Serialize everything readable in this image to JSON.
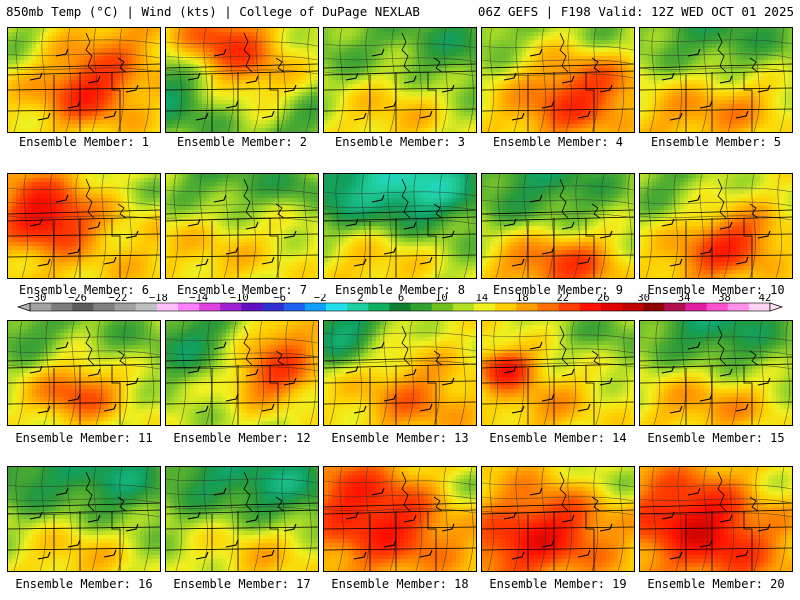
{
  "header": {
    "left": "850mb Temp (°C) | Wind (kts) | College of DuPage NEXLAB",
    "right": "06Z GEFS | F198 Valid: 12Z WED OCT 01 2025"
  },
  "members": [
    {
      "label": "Ensemble Member: 1",
      "base": 15,
      "hot": [
        [
          0.52,
          0.62,
          0.3,
          9
        ],
        [
          0.7,
          0.2,
          0.35,
          4
        ]
      ],
      "cool": [
        [
          0.05,
          0.08,
          0.25,
          4
        ]
      ]
    },
    {
      "label": "Ensemble Member: 2",
      "base": 12,
      "hot": [
        [
          0.35,
          0.1,
          0.35,
          10
        ],
        [
          0.55,
          0.45,
          0.35,
          6
        ]
      ],
      "cool": [
        [
          0.05,
          0.6,
          0.4,
          6
        ],
        [
          0.95,
          0.95,
          0.3,
          3
        ]
      ]
    },
    {
      "label": "Ensemble Member: 3",
      "base": 12,
      "hot": [
        [
          0.45,
          0.85,
          0.4,
          5
        ]
      ],
      "cool": [
        [
          0.85,
          0.15,
          0.4,
          4
        ],
        [
          0.1,
          0.2,
          0.3,
          2
        ]
      ]
    },
    {
      "label": "Ensemble Member: 4",
      "base": 13,
      "hot": [
        [
          0.7,
          0.6,
          0.4,
          9
        ],
        [
          0.4,
          0.9,
          0.4,
          4
        ]
      ],
      "cool": [
        [
          0.85,
          0.05,
          0.25,
          3
        ],
        [
          0.05,
          0.05,
          0.3,
          3
        ]
      ]
    },
    {
      "label": "Ensemble Member: 5",
      "base": 12,
      "hot": [
        [
          0.3,
          0.85,
          0.45,
          6
        ],
        [
          0.75,
          0.75,
          0.35,
          4
        ]
      ],
      "cool": [
        [
          0.5,
          0.05,
          0.5,
          4
        ]
      ]
    },
    {
      "label": "Ensemble Member: 6",
      "base": 16,
      "hot": [
        [
          0.28,
          0.45,
          0.28,
          10
        ],
        [
          0.15,
          0.2,
          0.25,
          4
        ]
      ],
      "cool": [
        [
          0.95,
          0.1,
          0.3,
          4
        ]
      ]
    },
    {
      "label": "Ensemble Member: 7",
      "base": 14,
      "hot": [
        [
          0.3,
          0.7,
          0.4,
          3
        ]
      ],
      "cool": [
        [
          0.35,
          0.05,
          0.45,
          5
        ],
        [
          0.9,
          0.1,
          0.25,
          4
        ]
      ]
    },
    {
      "label": "Ensemble Member: 8",
      "base": 12,
      "hot": [
        [
          0.35,
          0.9,
          0.4,
          5
        ]
      ],
      "cool": [
        [
          0.65,
          0.1,
          0.4,
          10
        ],
        [
          0.1,
          0.1,
          0.4,
          6
        ]
      ]
    },
    {
      "label": "Ensemble Member: 9",
      "base": 12,
      "hot": [
        [
          0.6,
          0.9,
          0.35,
          10
        ],
        [
          0.2,
          0.85,
          0.3,
          4
        ]
      ],
      "cool": [
        [
          0.4,
          0.05,
          0.45,
          5
        ]
      ]
    },
    {
      "label": "Ensemble Member: 10",
      "base": 14,
      "hot": [
        [
          0.62,
          0.65,
          0.3,
          9
        ],
        [
          0.35,
          0.9,
          0.3,
          4
        ]
      ],
      "cool": [
        [
          0.15,
          0.08,
          0.35,
          4
        ]
      ]
    },
    {
      "label": "Ensemble Member: 11",
      "base": 13,
      "hot": [
        [
          0.45,
          0.7,
          0.3,
          9
        ]
      ],
      "cool": [
        [
          0.1,
          0.1,
          0.35,
          4
        ],
        [
          0.85,
          0.15,
          0.3,
          3
        ]
      ]
    },
    {
      "label": "Ensemble Member: 12",
      "base": 13,
      "hot": [
        [
          0.7,
          0.5,
          0.3,
          10
        ],
        [
          0.8,
          0.1,
          0.25,
          5
        ]
      ],
      "cool": [
        [
          0.15,
          0.2,
          0.4,
          6
        ]
      ]
    },
    {
      "label": "Ensemble Member: 13",
      "base": 14,
      "hot": [
        [
          0.6,
          0.75,
          0.4,
          6
        ]
      ],
      "cool": [
        [
          0.1,
          0.1,
          0.3,
          9
        ]
      ]
    },
    {
      "label": "Ensemble Member: 14",
      "base": 14,
      "hot": [
        [
          0.15,
          0.45,
          0.18,
          11
        ],
        [
          0.4,
          0.8,
          0.35,
          4
        ]
      ],
      "cool": [
        [
          0.85,
          0.1,
          0.35,
          4
        ]
      ]
    },
    {
      "label": "Ensemble Member: 15",
      "base": 12,
      "hot": [
        [
          0.35,
          0.8,
          0.4,
          6
        ],
        [
          0.75,
          0.85,
          0.3,
          3
        ]
      ],
      "cool": [
        [
          0.5,
          0.05,
          0.45,
          6
        ]
      ]
    },
    {
      "label": "Ensemble Member: 16",
      "base": 12,
      "hot": [
        [
          0.45,
          0.9,
          0.4,
          5
        ]
      ],
      "cool": [
        [
          0.7,
          0.1,
          0.4,
          6
        ],
        [
          0.1,
          0.1,
          0.3,
          4
        ]
      ]
    },
    {
      "label": "Ensemble Member: 17",
      "base": 12,
      "hot": [
        [
          0.65,
          0.85,
          0.45,
          5
        ]
      ],
      "cool": [
        [
          0.75,
          0.2,
          0.4,
          7
        ],
        [
          0.2,
          0.1,
          0.3,
          4
        ]
      ]
    },
    {
      "label": "Ensemble Member: 18",
      "base": 16,
      "hot": [
        [
          0.4,
          0.55,
          0.45,
          9
        ],
        [
          0.15,
          0.2,
          0.3,
          4
        ]
      ],
      "cool": [
        [
          0.95,
          0.2,
          0.3,
          4
        ]
      ]
    },
    {
      "label": "Ensemble Member: 19",
      "base": 16,
      "hot": [
        [
          0.45,
          0.6,
          0.4,
          9
        ],
        [
          0.15,
          0.85,
          0.3,
          4
        ]
      ],
      "cool": [
        [
          0.85,
          0.1,
          0.3,
          4
        ]
      ]
    },
    {
      "label": "Ensemble Member: 20",
      "base": 17,
      "hot": [
        [
          0.35,
          0.5,
          0.4,
          10
        ],
        [
          0.6,
          0.85,
          0.3,
          4
        ]
      ],
      "cool": [
        [
          0.9,
          0.15,
          0.3,
          3
        ]
      ]
    }
  ],
  "colorbar": {
    "tick_labels": [
      "−30",
      "−26",
      "−22",
      "−18",
      "−14",
      "−10",
      "−6",
      "−2",
      "2",
      "6",
      "10",
      "14",
      "18",
      "22",
      "26",
      "30",
      "34",
      "38",
      "42"
    ],
    "colors": [
      "#a2a2a2",
      "#7c7c7c",
      "#5c5c5c",
      "#808080",
      "#a0a0a0",
      "#c0c0c0",
      "#ffc0ff",
      "#ff80ff",
      "#e040e0",
      "#a020d0",
      "#6010c0",
      "#3030d0",
      "#2060f0",
      "#10a0ff",
      "#20e0f0",
      "#20d0a0",
      "#10b060",
      "#108030",
      "#30a030",
      "#70c020",
      "#b0e020",
      "#f0f020",
      "#ffd000",
      "#ffa000",
      "#ff7000",
      "#ff4000",
      "#ff1000",
      "#e00000",
      "#c00000",
      "#900000",
      "#b01050",
      "#e020a0",
      "#ff50d0",
      "#ff90e8",
      "#ffd0f4"
    ]
  }
}
